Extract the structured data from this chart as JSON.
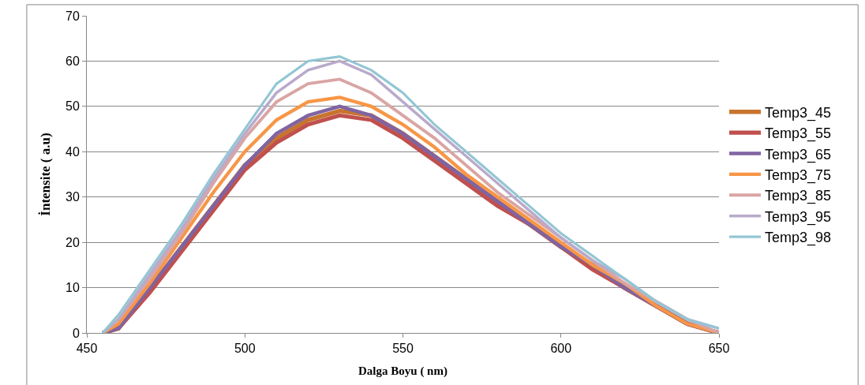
{
  "chart_data": {
    "type": "line",
    "xlabel": "Dalga Boyu ( nm)",
    "ylabel": "İntensite ( a.u)",
    "x": [
      455,
      460,
      470,
      480,
      490,
      500,
      510,
      520,
      530,
      540,
      550,
      560,
      570,
      580,
      590,
      600,
      610,
      620,
      630,
      640,
      650
    ],
    "xlim": [
      450,
      650
    ],
    "xticks": [
      450,
      500,
      550,
      600,
      650
    ],
    "ylim": [
      0,
      70
    ],
    "yticks": [
      0,
      10,
      20,
      30,
      40,
      50,
      60,
      70
    ],
    "grid": "y",
    "legend": "right",
    "marker": "none",
    "line_style": "solid",
    "series": [
      {
        "name": "Temp3_45",
        "color": "#c8742e",
        "values": [
          0,
          1,
          10,
          19,
          28,
          37,
          43,
          47,
          49,
          48,
          44,
          39,
          34,
          29,
          24,
          19,
          15,
          10,
          6,
          2,
          0
        ]
      },
      {
        "name": "Temp3_55",
        "color": "#c0504d",
        "values": [
          0,
          1,
          9,
          18,
          27,
          36,
          42,
          46,
          48,
          47,
          43,
          38,
          33,
          28,
          24,
          19,
          14,
          10,
          6,
          2,
          0
        ]
      },
      {
        "name": "Temp3_65",
        "color": "#8064a2",
        "values": [
          0,
          1,
          10,
          19,
          28,
          37,
          44,
          48,
          50,
          48,
          44,
          39,
          34,
          29,
          24,
          19,
          15,
          10,
          6,
          2,
          0
        ]
      },
      {
        "name": "Temp3_75",
        "color": "#f79646",
        "values": [
          0,
          2,
          11,
          21,
          31,
          40,
          47,
          51,
          52,
          50,
          46,
          41,
          35,
          30,
          25,
          20,
          15,
          11,
          6,
          2,
          0
        ]
      },
      {
        "name": "Temp3_85",
        "color": "#d9a5a3",
        "values": [
          0,
          3,
          12,
          22,
          33,
          43,
          51,
          55,
          56,
          53,
          48,
          43,
          37,
          31,
          26,
          21,
          16,
          11,
          7,
          3,
          0
        ]
      },
      {
        "name": "Temp3_95",
        "color": "#b9aacb",
        "values": [
          0,
          3,
          13,
          23,
          34,
          44,
          53,
          58,
          60,
          57,
          51,
          45,
          39,
          33,
          27,
          21,
          16,
          12,
          7,
          3,
          1
        ]
      },
      {
        "name": "Temp3_98",
        "color": "#93c6d4",
        "values": [
          0,
          4,
          14,
          24,
          35,
          45,
          55,
          60,
          61,
          58,
          53,
          46,
          40,
          34,
          28,
          22,
          17,
          12,
          7,
          3,
          1
        ]
      }
    ]
  }
}
